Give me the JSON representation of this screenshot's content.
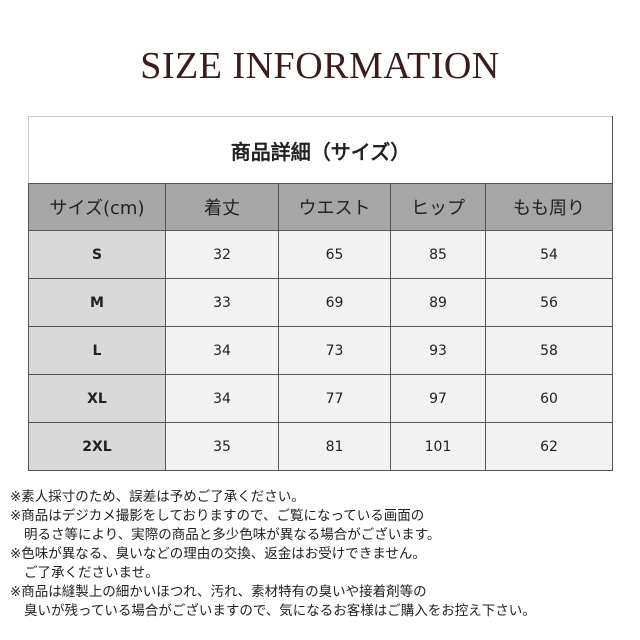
{
  "title": "SIZE INFORMATION",
  "table": {
    "caption": "商品詳細（サイズ）",
    "headers": [
      "サイズ(cm)",
      "着丈",
      "ウエスト",
      "ヒップ",
      "もも周り"
    ],
    "rows": [
      [
        "S",
        "32",
        "65",
        "85",
        "54"
      ],
      [
        "M",
        "33",
        "69",
        "89",
        "56"
      ],
      [
        "L",
        "34",
        "73",
        "93",
        "58"
      ],
      [
        "XL",
        "34",
        "77",
        "97",
        "60"
      ],
      [
        "2XL",
        "35",
        "81",
        "101",
        "62"
      ]
    ]
  },
  "notes": [
    "※素人採寸のため、誤差は予めご了承ください。",
    "※商品はデジカメ撮影をしておりますので、ご覧になっている画面の",
    "明るさ等により、実際の商品と多少色味が異なる場合がございます。",
    "※色味が異なる、臭いなどの理由の交換、返金はお受けできません。",
    "ご了承くださいませ。",
    "※商品は縫製上の細かいほつれ、汚れ、素材特有の臭いや接着剤等の",
    "臭いが残っている場合がございますので、気になるお客様はご購入をお控え下さい。"
  ]
}
